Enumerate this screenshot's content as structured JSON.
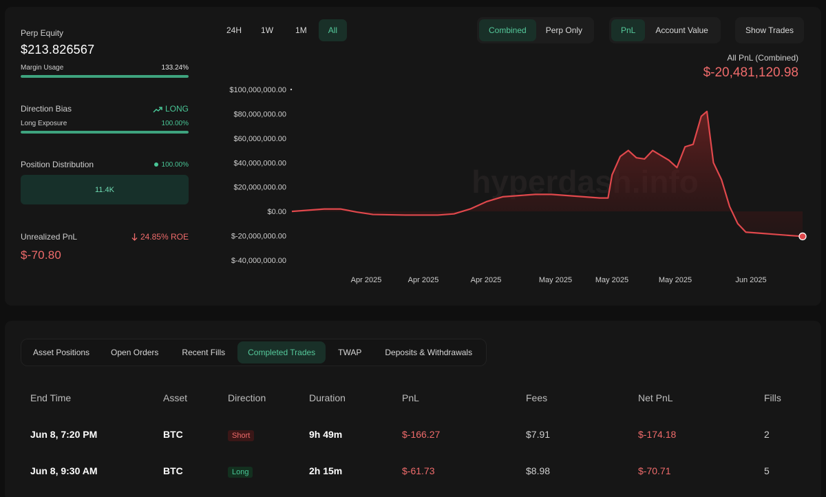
{
  "summary": {
    "perp_equity_label": "Perp Equity",
    "perp_equity_value": "$213.826567",
    "margin_usage_label": "Margin Usage",
    "margin_usage_value": "133.24%",
    "margin_usage_fill": 1.0,
    "direction_bias_label": "Direction Bias",
    "direction_bias_value": "LONG",
    "long_exposure_label": "Long Exposure",
    "long_exposure_value": "100.00%",
    "long_exposure_fill": 1.0,
    "position_distribution_label": "Position Distribution",
    "position_distribution_value": "100.00%",
    "position_distribution_box": "11.4K",
    "unrealized_pnl_label": "Unrealized PnL",
    "unrealized_roe": "24.85% ROE",
    "unrealized_pnl_value": "$-70.80"
  },
  "time_ranges": [
    "24H",
    "1W",
    "1M",
    "All"
  ],
  "active_time_range": "All",
  "scope_toggle": {
    "options": [
      "Combined",
      "Perp Only"
    ],
    "active": "Combined"
  },
  "metric_toggle": {
    "options": [
      "PnL",
      "Account Value"
    ],
    "active": "PnL"
  },
  "show_trades_label": "Show Trades",
  "pnl_header": {
    "label": "All PnL (Combined)",
    "value": "$-20,481,120.98"
  },
  "watermark": "hyperdash.info",
  "colors": {
    "accent_green": "#49c596",
    "negative_red": "#ef6b6b",
    "line_red": "#e0484c"
  },
  "chart_data": {
    "type": "area",
    "title": "",
    "xlabel": "",
    "ylabel": "",
    "ylim": [
      -40000000,
      100000000
    ],
    "y_ticks": [
      "$100,000,000.00",
      "$80,000,000.00",
      "$60,000,000.00",
      "$40,000,000.00",
      "$20,000,000.00",
      "$0.00",
      "$-20,000,000.00",
      "$-40,000,000.00"
    ],
    "x_ticks": [
      "Apr 2025",
      "Apr 2025",
      "Apr 2025",
      "May 2025",
      "May 2025",
      "May 2025",
      "Jun 2025"
    ],
    "series": [
      {
        "values": [
          [
            0,
            0
          ],
          [
            2,
            1000000
          ],
          [
            4,
            2000000
          ],
          [
            6,
            2000000
          ],
          [
            8,
            -500000
          ],
          [
            10,
            -2500000
          ],
          [
            14,
            -3000000
          ],
          [
            18,
            -3000000
          ],
          [
            20,
            -2000000
          ],
          [
            22,
            2000000
          ],
          [
            24,
            8000000
          ],
          [
            26,
            12000000
          ],
          [
            28,
            13000000
          ],
          [
            30,
            14000000
          ],
          [
            32,
            14000000
          ],
          [
            34,
            13000000
          ],
          [
            36,
            12000000
          ],
          [
            38,
            11000000
          ],
          [
            39,
            11000000
          ],
          [
            39.5,
            30000000
          ],
          [
            40.5,
            45000000
          ],
          [
            41.5,
            50000000
          ],
          [
            42.5,
            44000000
          ],
          [
            43.5,
            43000000
          ],
          [
            44.5,
            50000000
          ],
          [
            45.5,
            46000000
          ],
          [
            46.5,
            42000000
          ],
          [
            47.5,
            36000000
          ],
          [
            48.5,
            53000000
          ],
          [
            49.5,
            55000000
          ],
          [
            50.5,
            78000000
          ],
          [
            51.2,
            82000000
          ],
          [
            52,
            40000000
          ],
          [
            53,
            26000000
          ],
          [
            54,
            4000000
          ],
          [
            55,
            -10000000
          ],
          [
            56,
            -17000000
          ],
          [
            58,
            -18000000
          ],
          [
            60,
            -19000000
          ],
          [
            62,
            -20000000
          ],
          [
            63,
            -20480000
          ]
        ]
      }
    ]
  },
  "tabs": [
    "Asset Positions",
    "Open Orders",
    "Recent Fills",
    "Completed Trades",
    "TWAP",
    "Deposits & Withdrawals"
  ],
  "active_tab": "Completed Trades",
  "table": {
    "columns": [
      "End Time",
      "Asset",
      "Direction",
      "Duration",
      "PnL",
      "Fees",
      "Net PnL",
      "Fills"
    ],
    "rows": [
      {
        "end_time": "Jun 8, 7:20 PM",
        "asset": "BTC",
        "direction": "Short",
        "duration": "9h 49m",
        "pnl": "$-166.27",
        "fees": "$7.91",
        "net_pnl": "$-174.18",
        "fills": "2"
      },
      {
        "end_time": "Jun 8, 9:30 AM",
        "asset": "BTC",
        "direction": "Long",
        "duration": "2h 15m",
        "pnl": "$-61.73",
        "fees": "$8.98",
        "net_pnl": "$-70.71",
        "fills": "5"
      }
    ]
  }
}
